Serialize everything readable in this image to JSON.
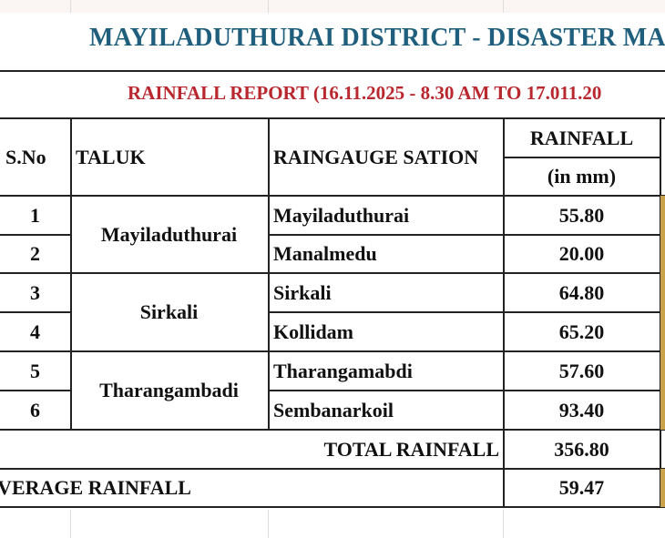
{
  "title": "MAYILADUTHURAI DISTRICT - DISASTER MA",
  "subtitle": "RAINFALL REPORT (16.11.2025 - 8.30 AM TO 17.011.20",
  "table": {
    "headers": {
      "sno": "S.No",
      "taluk": "TALUK",
      "station": "RAINGAUGE SATION",
      "rainfall": "RAINFALL",
      "unit": "(in mm)"
    },
    "taluks": [
      "Mayiladuthurai",
      "Sirkali",
      "Tharangambadi"
    ],
    "rows": [
      {
        "sno": "1",
        "station": "Mayiladuthurai",
        "rainfall": "55.80"
      },
      {
        "sno": "2",
        "station": "Manalmedu",
        "rainfall": "20.00"
      },
      {
        "sno": "3",
        "station": "Sirkali",
        "rainfall": "64.80"
      },
      {
        "sno": "4",
        "station": "Kollidam",
        "rainfall": "65.20"
      },
      {
        "sno": "5",
        "station": "Tharangamabdi",
        "rainfall": "57.60"
      },
      {
        "sno": "6",
        "station": "Sembanarkoil",
        "rainfall": "93.40"
      }
    ],
    "total_label": "TOTAL RAINFALL",
    "total_value": "356.80",
    "average_label": "AVERAGE RAINFALL",
    "average_value": "59.47"
  }
}
